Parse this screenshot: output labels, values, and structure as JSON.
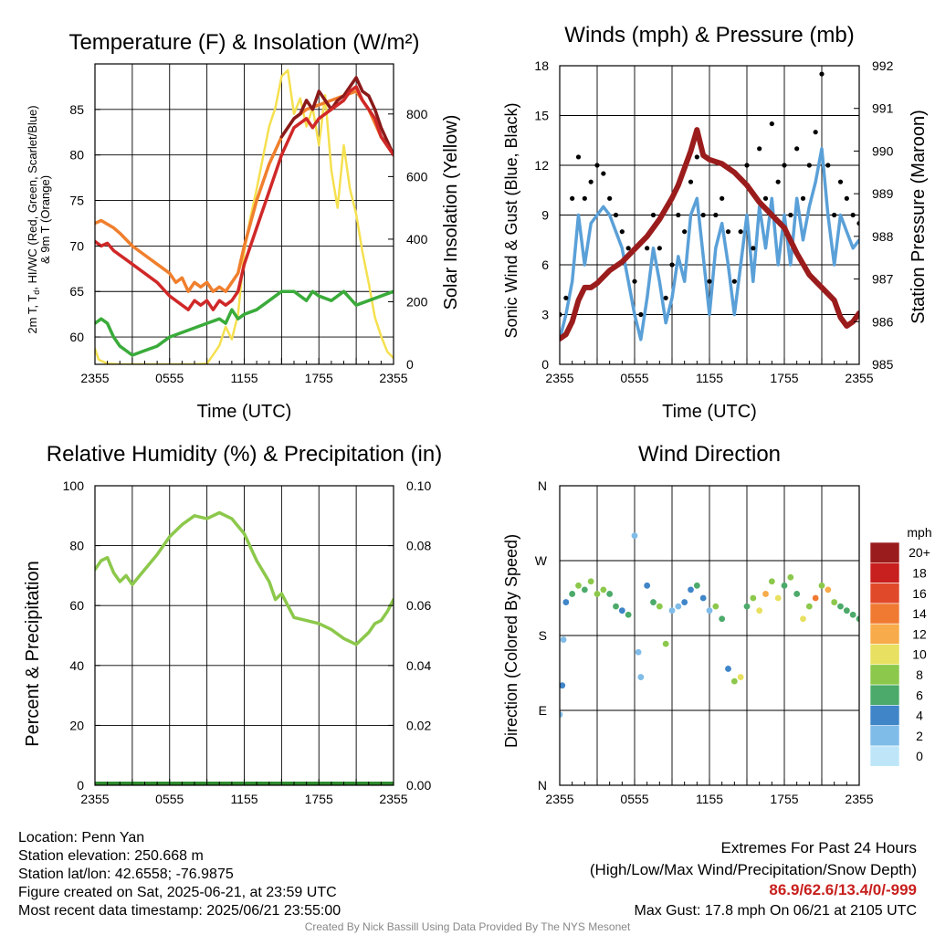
{
  "chart_data": [
    {
      "type": "line",
      "title": "Temperature (F) & Insolation (W/m²)",
      "xlabel": "Time (UTC)",
      "ylabel": "2m T, Td, HI/WC (Red, Green, Scarlet/Blue) & 9m T (Orange)",
      "ylabel_right": "Solar Insolation (Yellow)",
      "x_ticks": [
        "2355",
        "0555",
        "1155",
        "1755",
        "2355"
      ],
      "x_hours": [
        0,
        24
      ],
      "ylim": [
        57,
        90
      ],
      "y_ticks": [
        60,
        65,
        70,
        75,
        80,
        85
      ],
      "ylim_right": [
        0,
        960
      ],
      "y_ticks_right": [
        0,
        200,
        400,
        600,
        800
      ],
      "grid": true,
      "series": [
        {
          "name": "Solar Insolation",
          "axis": "right",
          "color": "#f5e050",
          "x": [
            0,
            0.3,
            1,
            2,
            4,
            6,
            8,
            9,
            9.5,
            10,
            10.5,
            11,
            11.5,
            12,
            12.5,
            13,
            13.5,
            14,
            14.5,
            15,
            15.5,
            16,
            16.5,
            17,
            17.5,
            18,
            18.5,
            19,
            19.5,
            20,
            20.5,
            21,
            21.5,
            22,
            22.5,
            23,
            23.5,
            24
          ],
          "y": [
            50,
            15,
            2,
            0,
            0,
            0,
            0,
            2,
            30,
            60,
            120,
            80,
            160,
            360,
            470,
            560,
            660,
            760,
            820,
            920,
            940,
            800,
            850,
            760,
            820,
            700,
            860,
            620,
            500,
            700,
            560,
            480,
            360,
            260,
            150,
            90,
            40,
            20
          ]
        },
        {
          "name": "9m T",
          "color": "#f07f2d",
          "x": [
            0,
            0.5,
            1,
            1.5,
            2,
            3,
            4,
            5,
            6,
            6.5,
            7,
            7.5,
            8,
            8.5,
            9,
            9.5,
            10,
            10.5,
            11,
            11.5,
            12,
            13,
            14,
            15,
            16,
            17,
            18,
            19,
            20,
            21,
            22,
            23,
            24
          ],
          "y": [
            72.5,
            72.8,
            72.4,
            72,
            71.4,
            70,
            69,
            68,
            67,
            66,
            66.5,
            65,
            66,
            65.5,
            66,
            65,
            65.5,
            65,
            66,
            67,
            70,
            75,
            79,
            82,
            84,
            85,
            85.5,
            86,
            86.5,
            87,
            85,
            82,
            80
          ]
        },
        {
          "name": "HI/WC",
          "color": "#8b1a1a",
          "x": [
            15,
            15.5,
            16,
            16.5,
            17,
            17.5,
            18,
            18.5,
            19,
            19.5,
            20,
            20.5,
            21,
            21.5,
            22,
            22.5,
            23,
            23.5,
            24
          ],
          "y": [
            82,
            83,
            84,
            84.5,
            86,
            85,
            87,
            86,
            85,
            86,
            86.5,
            87.5,
            88.5,
            87,
            86.5,
            85,
            83,
            81.5,
            80
          ]
        },
        {
          "name": "2m T",
          "color": "#d02828",
          "x": [
            0,
            0.5,
            1,
            1.5,
            2,
            2.5,
            3,
            4,
            5,
            6,
            6.5,
            7,
            7.5,
            8,
            8.5,
            9,
            9.5,
            10,
            10.5,
            11,
            11.5,
            12,
            13,
            14,
            15,
            16,
            17,
            17.5,
            18,
            19,
            20,
            20.5,
            21,
            21.5,
            22,
            22.5,
            23,
            23.5,
            24
          ],
          "y": [
            70.5,
            70,
            70.3,
            69.5,
            69,
            68.5,
            68,
            67,
            66,
            64.5,
            64,
            63.5,
            63,
            64,
            63.5,
            64,
            63,
            64,
            63.5,
            64,
            65,
            68,
            72,
            76,
            80,
            83,
            84,
            83,
            84,
            85,
            86,
            87,
            87.5,
            86,
            85,
            84,
            82,
            81,
            80
          ]
        },
        {
          "name": "2m Td",
          "color": "#3aab3a",
          "x": [
            0,
            0.5,
            1,
            1.5,
            2,
            2.5,
            3,
            4,
            5,
            6,
            7,
            8,
            9,
            10,
            10.5,
            11,
            11.5,
            12,
            13,
            14,
            15,
            16,
            17,
            17.5,
            18,
            19,
            20,
            21,
            22,
            23,
            24
          ],
          "y": [
            61.5,
            62,
            61.5,
            60,
            59,
            58.5,
            58,
            58.5,
            59,
            60,
            60.5,
            61,
            61.5,
            62,
            61.5,
            63,
            62,
            62.5,
            63,
            64,
            65,
            65,
            64,
            65,
            64.5,
            64,
            65,
            63.5,
            64,
            64.5,
            65
          ]
        }
      ]
    },
    {
      "type": "line",
      "title": "Winds (mph) & Pressure (mb)",
      "xlabel": "Time (UTC)",
      "ylabel": "Sonic Wind & Gust (Blue, Black)",
      "ylabel_right": "Station Pressure (Maroon)",
      "x_ticks": [
        "2355",
        "0555",
        "1155",
        "1755",
        "2355"
      ],
      "x_hours": [
        0,
        24
      ],
      "ylim": [
        0,
        18
      ],
      "y_ticks": [
        0,
        3,
        6,
        9,
        12,
        15,
        18
      ],
      "ylim_right": [
        985,
        992
      ],
      "y_ticks_right": [
        985,
        986,
        987,
        988,
        989,
        990,
        991,
        992
      ],
      "grid": true,
      "series": [
        {
          "name": "Sonic Wind",
          "color": "#5aa0d8",
          "x": [
            0,
            0.5,
            1,
            1.5,
            2,
            2.5,
            3,
            3.5,
            4,
            4.5,
            5,
            5.5,
            6,
            6.5,
            7,
            7.5,
            8,
            8.5,
            9,
            9.5,
            10,
            10.5,
            11,
            11.5,
            12,
            12.5,
            13,
            13.5,
            14,
            14.5,
            15,
            15.5,
            16,
            16.5,
            17,
            17.5,
            18,
            18.5,
            19,
            19.5,
            20,
            20.5,
            21,
            21.5,
            22,
            22.5,
            23,
            23.5,
            24
          ],
          "y": [
            1.5,
            3,
            5,
            9,
            6,
            8.5,
            9,
            9.5,
            9,
            8,
            7,
            5,
            3,
            1.5,
            4,
            7,
            5,
            2.5,
            4,
            6.5,
            5,
            9,
            10,
            6.5,
            3,
            7,
            8.5,
            6,
            3,
            6,
            9,
            5,
            9.5,
            7,
            10,
            6,
            9,
            6,
            10,
            7.5,
            9.5,
            11,
            13,
            9,
            6,
            9,
            8,
            7,
            7.5
          ]
        },
        {
          "name": "Gust",
          "color": "#000000",
          "style": "dots",
          "x": [
            0,
            0.5,
            1,
            1.5,
            2,
            2.5,
            3,
            3.5,
            4,
            4.5,
            5,
            5.5,
            6,
            6.5,
            7,
            7.5,
            8,
            8.5,
            9,
            9.5,
            10,
            10.5,
            11,
            11.5,
            12,
            12.5,
            13,
            13.5,
            14,
            14.5,
            15,
            15.5,
            16,
            16.5,
            17,
            17.5,
            18,
            18.5,
            19,
            19.5,
            20,
            20.5,
            21,
            21.5,
            22,
            22.5,
            23,
            23.5,
            24
          ],
          "y": [
            3,
            4,
            10,
            12.5,
            10,
            11,
            12,
            11.5,
            10,
            9,
            8,
            7,
            5,
            3,
            7,
            9,
            7,
            4,
            6,
            9,
            8,
            11,
            12.5,
            9,
            5,
            9,
            10,
            8,
            5,
            8,
            12,
            7,
            13,
            10,
            14.5,
            11,
            12,
            9,
            13,
            10,
            12,
            14,
            17.5,
            12,
            9,
            11,
            10,
            9,
            8.5
          ]
        },
        {
          "name": "Station Pressure",
          "axis": "right",
          "color": "#9b1c1c",
          "x": [
            0,
            0.5,
            1,
            1.5,
            2,
            2.5,
            3,
            4,
            5,
            6,
            7,
            8,
            9,
            9.5,
            10,
            10.5,
            11,
            11.5,
            12,
            13,
            14,
            15,
            16,
            17,
            18,
            19,
            20,
            21,
            22,
            22.5,
            23,
            23.5,
            24
          ],
          "y": [
            985.6,
            985.7,
            986,
            986.5,
            986.8,
            986.8,
            986.9,
            987.2,
            987.4,
            987.7,
            988,
            988.4,
            988.9,
            989.2,
            989.6,
            990,
            990.5,
            989.9,
            989.8,
            989.7,
            989.5,
            989.2,
            988.8,
            988.5,
            988.2,
            987.6,
            987.1,
            986.8,
            986.5,
            986.1,
            985.9,
            986,
            986.2
          ]
        }
      ]
    },
    {
      "type": "line",
      "title": "Relative Humidity (%) & Precipitation (in)",
      "ylabel": "Percent & Precipitation",
      "x_ticks": [
        "2355",
        "0555",
        "1155",
        "1755",
        "2355"
      ],
      "x_hours": [
        0,
        24
      ],
      "ylim": [
        0,
        100
      ],
      "y_ticks": [
        0,
        20,
        40,
        60,
        80,
        100
      ],
      "ylim_right": [
        0,
        0.1
      ],
      "y_ticks_right": [
        "0.00",
        "0.02",
        "0.04",
        "0.06",
        "0.08",
        "0.10"
      ],
      "grid": true,
      "series": [
        {
          "name": "Relative Humidity",
          "color": "#8cc84b",
          "x": [
            0,
            0.5,
            1,
            1.5,
            2,
            2.5,
            3,
            4,
            5,
            6,
            7,
            8,
            9,
            10,
            11,
            12,
            13,
            14,
            14.5,
            15,
            16,
            17,
            18,
            19,
            20,
            21,
            21.5,
            22,
            22.5,
            23,
            23.5,
            24
          ],
          "y": [
            72,
            75,
            76,
            71,
            68,
            70,
            67,
            72,
            77,
            83,
            87,
            90,
            89,
            91,
            89,
            84,
            75,
            68,
            62,
            64,
            56,
            55,
            54,
            52,
            49,
            47,
            49,
            51,
            54,
            55,
            58,
            62
          ]
        },
        {
          "name": "Precipitation",
          "axis": "right",
          "color": "#2e8b2e",
          "x": [
            0,
            24
          ],
          "y": [
            0,
            0
          ]
        }
      ]
    },
    {
      "type": "scatter",
      "title": "Wind Direction",
      "ylabel": "Direction (Colored By Speed)",
      "x_ticks": [
        "2355",
        "0555",
        "1155",
        "1755",
        "2355"
      ],
      "x_hours": [
        0,
        24
      ],
      "y_ticks": [
        "N",
        "E",
        "S",
        "W",
        "N"
      ],
      "ylim": [
        0,
        360
      ],
      "grid": true,
      "legend": {
        "title": "mph",
        "labels": [
          "20+",
          "18",
          "16",
          "14",
          "12",
          "10",
          "8",
          "6",
          "4",
          "2",
          "0"
        ],
        "colors": [
          "#9b1c1c",
          "#c8201e",
          "#e04a2a",
          "#f07a32",
          "#f8ab4a",
          "#e8e060",
          "#8cc84b",
          "#4caa6a",
          "#3f85c8",
          "#80bce8",
          "#bfe6f8"
        ]
      },
      "points": [
        [
          0,
          85,
          2
        ],
        [
          0.2,
          120,
          4
        ],
        [
          0.3,
          175,
          2
        ],
        [
          0.5,
          220,
          4
        ],
        [
          1,
          230,
          6
        ],
        [
          1.5,
          240,
          8
        ],
        [
          2,
          235,
          6
        ],
        [
          2.5,
          245,
          8
        ],
        [
          3,
          230,
          8
        ],
        [
          3.5,
          235,
          8
        ],
        [
          4,
          230,
          6
        ],
        [
          4.5,
          215,
          6
        ],
        [
          5,
          210,
          4
        ],
        [
          5.5,
          205,
          6
        ],
        [
          6,
          300,
          2
        ],
        [
          6.3,
          160,
          2
        ],
        [
          6.5,
          130,
          2
        ],
        [
          7,
          240,
          4
        ],
        [
          7.5,
          220,
          6
        ],
        [
          8,
          215,
          8
        ],
        [
          8.5,
          170,
          8
        ],
        [
          9,
          210,
          2
        ],
        [
          9.5,
          215,
          2
        ],
        [
          10,
          220,
          4
        ],
        [
          10.5,
          235,
          4
        ],
        [
          11,
          240,
          6
        ],
        [
          11.5,
          225,
          4
        ],
        [
          12,
          210,
          2
        ],
        [
          12.5,
          215,
          8
        ],
        [
          13,
          200,
          6
        ],
        [
          13.5,
          140,
          4
        ],
        [
          14,
          125,
          8
        ],
        [
          14.5,
          130,
          10
        ],
        [
          15,
          215,
          6
        ],
        [
          15.5,
          225,
          8
        ],
        [
          16,
          210,
          10
        ],
        [
          16.5,
          230,
          12
        ],
        [
          17,
          245,
          8
        ],
        [
          17.5,
          225,
          10
        ],
        [
          18,
          240,
          6
        ],
        [
          18.5,
          250,
          8
        ],
        [
          19,
          230,
          6
        ],
        [
          19.5,
          200,
          10
        ],
        [
          20,
          215,
          8
        ],
        [
          20.5,
          225,
          14
        ],
        [
          21,
          240,
          8
        ],
        [
          21.5,
          235,
          12
        ],
        [
          22,
          220,
          8
        ],
        [
          22.5,
          215,
          6
        ],
        [
          23,
          210,
          6
        ],
        [
          23.5,
          205,
          6
        ],
        [
          24,
          200,
          6
        ]
      ]
    }
  ],
  "info": {
    "location": "Location: Penn Yan",
    "elevation": "Station elevation: 250.668 m",
    "latlon": "Station lat/lon: 42.6558; -76.9875",
    "created": "Figure created on Sat, 2025-06-21, at 23:59 UTC",
    "recent": "Most recent data timestamp: 2025/06/21 23:55:00"
  },
  "extremes": {
    "title": "Extremes For Past 24 Hours",
    "subtitle": "(High/Low/Max Wind/Precipitation/Snow Depth)",
    "values": "86.9/62.6/13.4/0/-999",
    "gust": "Max Gust: 17.8 mph On 06/21 at 2105 UTC"
  },
  "credit": "Created By Nick Bassill Using Data Provided By The NYS Mesonet",
  "colors": {
    "accent": "#c8201e",
    "credit": "#888888"
  }
}
